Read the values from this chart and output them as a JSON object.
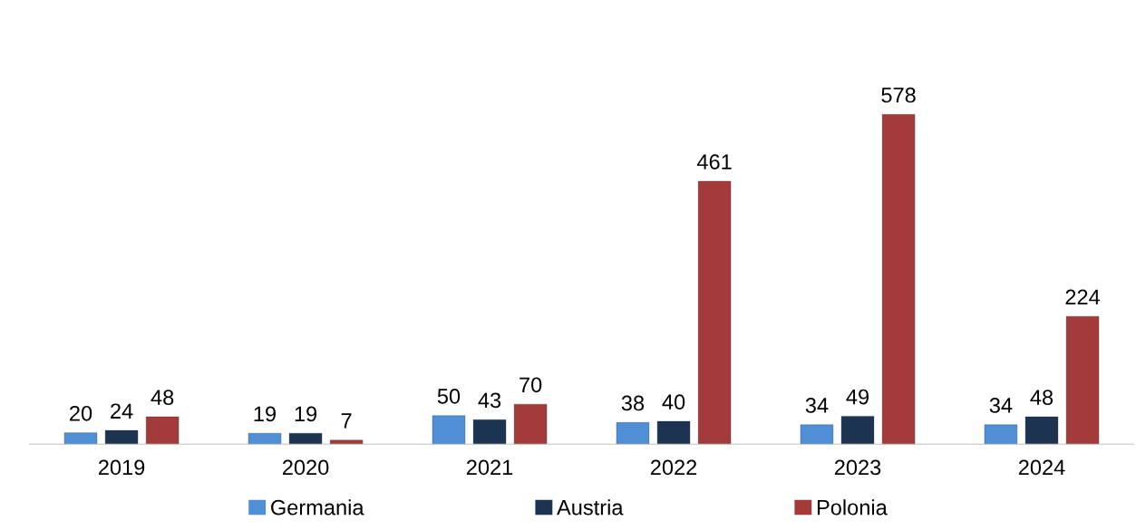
{
  "chart_data": {
    "type": "bar",
    "categories": [
      "2019",
      "2020",
      "2021",
      "2022",
      "2023",
      "2024"
    ],
    "series": [
      {
        "name": "Germania",
        "color": "#4f8fd6",
        "values": [
          20,
          19,
          50,
          38,
          34,
          34
        ]
      },
      {
        "name": "Austria",
        "color": "#1c3352",
        "values": [
          24,
          19,
          43,
          40,
          49,
          48
        ]
      },
      {
        "name": "Polonia",
        "color": "#a33b3b",
        "values": [
          48,
          7,
          70,
          461,
          578,
          224
        ]
      }
    ],
    "data_labels": true,
    "legend": "bottom",
    "grid": false,
    "tick_labels": "x"
  }
}
